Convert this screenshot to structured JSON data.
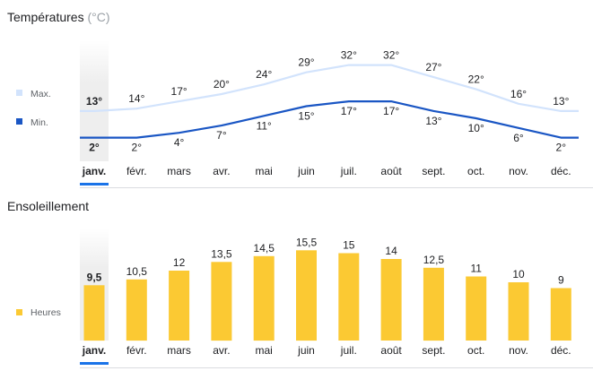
{
  "temperatures": {
    "title": "Températures",
    "unit": "(°C)",
    "legend": [
      {
        "label": "Max.",
        "color": "#d2e3fc"
      },
      {
        "label": "Min.",
        "color": "#1a56c4"
      }
    ]
  },
  "sunshine": {
    "title": "Ensoleillement",
    "legend": [
      {
        "label": "Heures",
        "color": "#fbc933"
      }
    ]
  },
  "selected_month_index": 0,
  "chart_data": [
    {
      "type": "line",
      "title": "Températures",
      "unit": "°C",
      "categories": [
        "janv.",
        "févr.",
        "mars",
        "avr.",
        "mai",
        "juin",
        "juil.",
        "août",
        "sept.",
        "oct.",
        "nov.",
        "déc."
      ],
      "series": [
        {
          "name": "Max.",
          "values": [
            13,
            14,
            17,
            20,
            24,
            29,
            32,
            32,
            27,
            22,
            16,
            13
          ],
          "labels": [
            "13°",
            "14°",
            "17°",
            "20°",
            "24°",
            "29°",
            "32°",
            "32°",
            "27°",
            "22°",
            "16°",
            "13°"
          ]
        },
        {
          "name": "Min.",
          "values": [
            2,
            2,
            4,
            7,
            11,
            15,
            17,
            17,
            13,
            10,
            6,
            2
          ],
          "labels": [
            "2°",
            "2°",
            "4°",
            "7°",
            "11°",
            "15°",
            "17°",
            "17°",
            "13°",
            "10°",
            "6°",
            "2°"
          ]
        }
      ],
      "grid": false,
      "legend": "left"
    },
    {
      "type": "bar",
      "title": "Ensoleillement",
      "categories": [
        "janv.",
        "févr.",
        "mars",
        "avr.",
        "mai",
        "juin",
        "juil.",
        "août",
        "sept.",
        "oct.",
        "nov.",
        "déc."
      ],
      "series": [
        {
          "name": "Heures",
          "values": [
            9.5,
            10.5,
            12,
            13.5,
            14.5,
            15.5,
            15,
            14,
            12.5,
            11,
            10,
            9
          ],
          "labels": [
            "9,5",
            "10,5",
            "12",
            "13,5",
            "14,5",
            "15,5",
            "15",
            "14",
            "12,5",
            "11",
            "10",
            "9"
          ]
        }
      ],
      "grid": false,
      "legend": "left"
    }
  ]
}
